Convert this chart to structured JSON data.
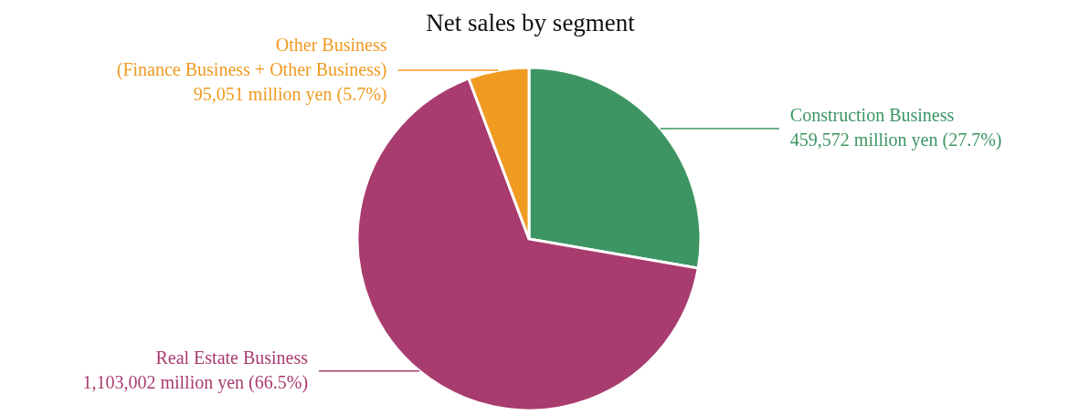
{
  "chart_data": {
    "type": "pie",
    "title": "Net sales by segment",
    "categories": [
      "Construction Business",
      "Real Estate Business",
      "Other Business (Finance Business + Other Business)"
    ],
    "values": [
      27.7,
      66.5,
      5.7
    ],
    "value_labels": [
      "459,572 million yen (27.7%)",
      "1,103,002 million yen (66.5%)",
      "95,051 million yen (5.7%)"
    ],
    "colors": [
      "#3d9563",
      "#a93c6f",
      "#ef9b22"
    ]
  }
}
